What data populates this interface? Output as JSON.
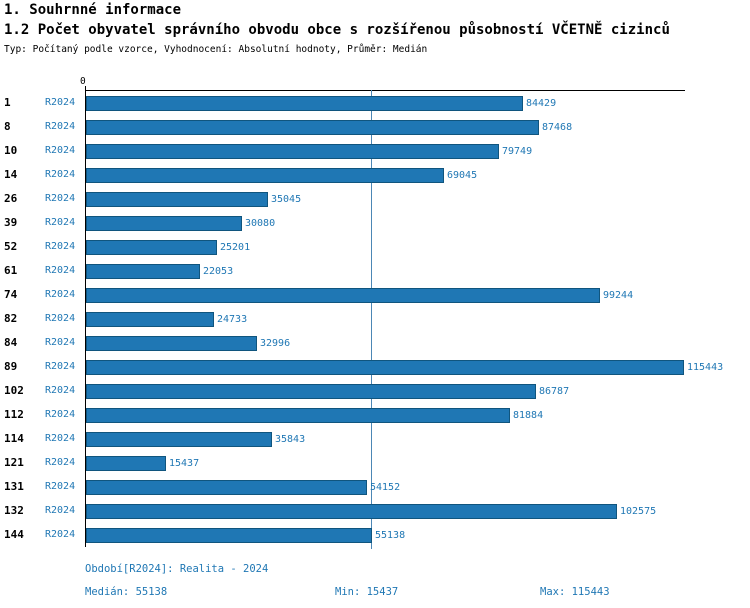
{
  "header": {
    "title": "1. Souhrnné informace",
    "subtitle": "1.2 Počet obyvatel správního obvodu obce s rozšířenou působností VČETNĚ cizinců",
    "meta": "Typ: Počítaný podle vzorce, Vyhodnocení: Absolutní hodnoty, Průměr: Medián"
  },
  "chart_data": {
    "type": "bar",
    "orientation": "horizontal",
    "title": "1.2 Počet obyvatel správního obvodu obce s rozšířenou působností VČETNĚ cizinců",
    "series_label": "R2024",
    "categories": [
      "1",
      "8",
      "10",
      "14",
      "26",
      "39",
      "52",
      "61",
      "74",
      "82",
      "84",
      "89",
      "102",
      "112",
      "114",
      "121",
      "131",
      "132",
      "144"
    ],
    "values": [
      84429,
      87468,
      79749,
      69045,
      35045,
      30080,
      25201,
      22053,
      99244,
      24733,
      32996,
      115443,
      86787,
      81884,
      35843,
      15437,
      54152,
      102575,
      55138
    ],
    "axis": {
      "zero_label": "0",
      "min": 0,
      "max": 115443
    },
    "median_line": 55138,
    "grid": "off",
    "legend": "none",
    "bar_color": "#1f77b4",
    "label_color": "#1f77b4",
    "stats": {
      "median": 55138,
      "min": 15437,
      "max": 115443
    }
  },
  "footer": {
    "period": "Období[R2024]: Realita - 2024",
    "median": "Medián: 55138",
    "min": "Min: 15437",
    "max": "Max: 115443"
  }
}
